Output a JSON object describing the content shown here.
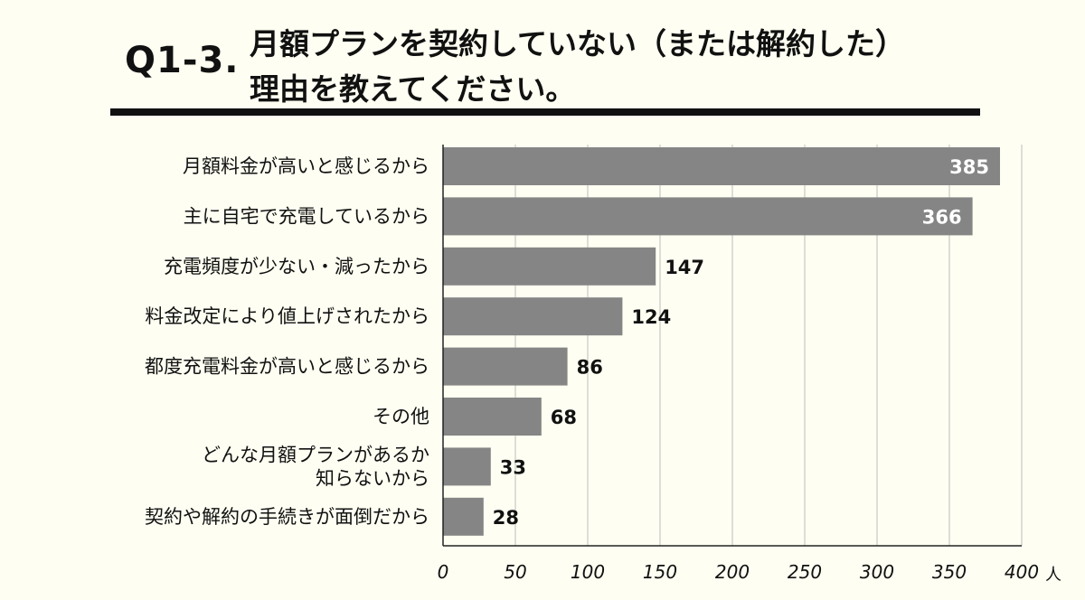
{
  "header": {
    "question_number": "Q1-3.",
    "title_line1": "月額プランを契約していない（または解約した）",
    "title_line2": "理由を教えてください。"
  },
  "colors": {
    "background": "#fefef2",
    "bar": "#858585",
    "grid": "#bdbdbd",
    "text": "#111111",
    "inside_label": "#ffffff"
  },
  "chart_data": {
    "type": "bar",
    "orientation": "horizontal",
    "categories": [
      [
        "月額料金が高いと感じるから"
      ],
      [
        "主に自宅で充電しているから"
      ],
      [
        "充電頻度が少ない・減ったから"
      ],
      [
        "料金改定により値上げされたから"
      ],
      [
        "都度充電料金が高いと感じるから"
      ],
      [
        "その他"
      ],
      [
        "どんな月額プランがあるか",
        "知らないから"
      ],
      [
        "契約や解約の手続きが面倒だから"
      ]
    ],
    "values": [
      385,
      366,
      147,
      124,
      86,
      68,
      33,
      28
    ],
    "xlim": [
      0,
      400
    ],
    "xticks": [
      0,
      50,
      100,
      150,
      200,
      250,
      300,
      350,
      400
    ],
    "unit": "人",
    "grid": true,
    "title": "Q1-3. 月額プランを契約していない（または解約した）理由を教えてください。",
    "xlabel": "",
    "ylabel": ""
  }
}
